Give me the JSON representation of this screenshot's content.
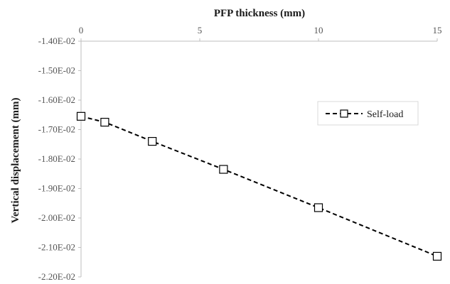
{
  "chart_data": {
    "type": "line",
    "xlabel": "PFP thickness (mm)",
    "ylabel": "Vertical displacement (mm)",
    "x_axis_position": "top",
    "xlim": [
      0,
      15
    ],
    "ylim": [
      -0.022,
      -0.014
    ],
    "x_ticks": [
      0,
      5,
      10,
      15
    ],
    "x_tick_labels": [
      "0",
      "5",
      "10",
      "15"
    ],
    "y_ticks": [
      -0.014,
      -0.015,
      -0.016,
      -0.017,
      -0.018,
      -0.019,
      -0.02,
      -0.021,
      -0.022
    ],
    "y_tick_labels": [
      "-1.40E-02",
      "-1.50E-02",
      "-1.60E-02",
      "-1.70E-02",
      "-1.80E-02",
      "-1.90E-02",
      "-2.00E-02",
      "-2.10E-02",
      "-2.20E-02"
    ],
    "grid": false,
    "legend_position": "right",
    "series": [
      {
        "name": "Self-load",
        "line_style": "dashed",
        "marker": "open-square",
        "color": "#000000",
        "x": [
          0,
          1,
          3,
          6,
          10,
          15
        ],
        "y": [
          -0.01655,
          -0.01675,
          -0.0174,
          -0.01835,
          -0.01965,
          -0.0213
        ]
      }
    ]
  }
}
